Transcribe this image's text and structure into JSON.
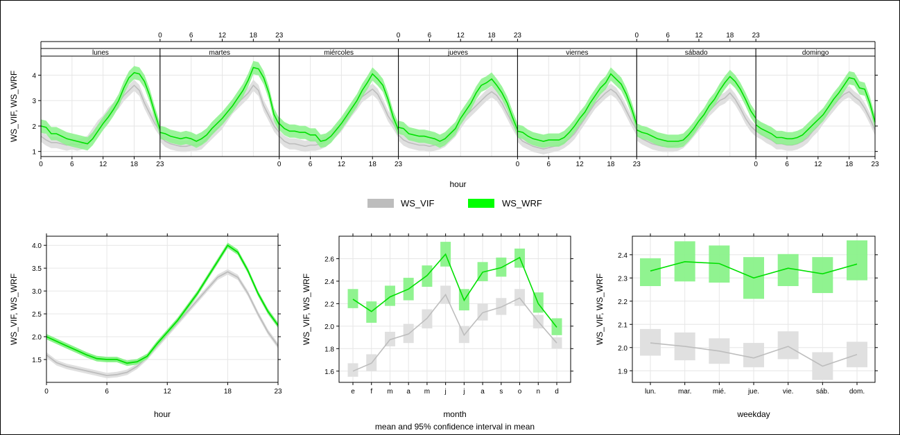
{
  "colors": {
    "ws_vif_line": "#bdbdbd",
    "ws_vif_band": "#e0e0e0",
    "ws_wrf_line": "#00e000",
    "ws_wrf_band": "#8af28a",
    "grid": "#e6e6e6",
    "strip_bg": "#ffffff"
  },
  "legend": {
    "items": [
      {
        "label": "WS_VIF",
        "color": "#bdbdbd"
      },
      {
        "label": "WS_WRF",
        "color": "#00ff00"
      }
    ]
  },
  "chart_data": [
    {
      "id": "hour_by_weekday",
      "type": "line",
      "panels": [
        "lunes",
        "martes",
        "miércoles",
        "jueves",
        "viernes",
        "sábado",
        "domingo"
      ],
      "xlabel": "hour",
      "ylabel": "WS_VIF, WS_WRF",
      "xlim": [
        0,
        23
      ],
      "ylim": [
        0.8,
        4.75
      ],
      "xticks": [
        0,
        6,
        12,
        18,
        23
      ],
      "yticks": [
        1,
        2,
        3,
        4
      ],
      "series": [
        {
          "name": "WS_VIF",
          "values": [
            [
              1.6,
              1.45,
              1.35,
              1.35,
              1.3,
              1.25,
              1.3,
              1.25,
              1.3,
              1.4,
              1.7,
              2.0,
              2.2,
              2.5,
              2.7,
              2.9,
              3.2,
              3.4,
              3.6,
              3.4,
              2.9,
              2.5,
              2.1,
              1.8
            ],
            [
              1.6,
              1.4,
              1.3,
              1.25,
              1.2,
              1.2,
              1.25,
              1.25,
              1.3,
              1.5,
              1.7,
              1.9,
              2.1,
              2.4,
              2.7,
              2.9,
              3.1,
              3.3,
              3.6,
              3.4,
              2.8,
              2.4,
              2.0,
              1.75
            ],
            [
              1.6,
              1.4,
              1.3,
              1.3,
              1.25,
              1.2,
              1.25,
              1.25,
              1.3,
              1.4,
              1.6,
              1.8,
              2.0,
              2.3,
              2.6,
              2.85,
              3.15,
              3.3,
              3.45,
              3.25,
              2.85,
              2.4,
              2.1,
              1.75
            ],
            [
              1.65,
              1.45,
              1.35,
              1.3,
              1.25,
              1.25,
              1.2,
              1.25,
              1.3,
              1.4,
              1.6,
              1.8,
              2.1,
              2.4,
              2.6,
              2.8,
              3.0,
              3.2,
              3.35,
              3.2,
              2.9,
              2.5,
              2.1,
              1.75
            ],
            [
              1.6,
              1.4,
              1.3,
              1.2,
              1.15,
              1.1,
              1.15,
              1.2,
              1.25,
              1.35,
              1.5,
              1.7,
              2.0,
              2.3,
              2.6,
              2.9,
              3.1,
              3.3,
              3.45,
              3.3,
              3.0,
              2.6,
              2.2,
              1.85
            ],
            [
              1.65,
              1.5,
              1.4,
              1.3,
              1.25,
              1.2,
              1.2,
              1.2,
              1.25,
              1.35,
              1.55,
              1.8,
              2.05,
              2.3,
              2.6,
              2.8,
              3.0,
              3.1,
              3.3,
              3.05,
              2.7,
              2.3,
              2.0,
              1.8
            ],
            [
              1.8,
              1.7,
              1.55,
              1.45,
              1.3,
              1.3,
              1.25,
              1.25,
              1.3,
              1.4,
              1.55,
              1.8,
              2.0,
              2.3,
              2.55,
              2.8,
              3.05,
              3.25,
              3.35,
              3.15,
              3.0,
              2.7,
              2.3,
              1.85
            ]
          ]
        },
        {
          "name": "WS_WRF",
          "values": [
            [
              2.0,
              1.95,
              1.7,
              1.7,
              1.6,
              1.5,
              1.45,
              1.4,
              1.35,
              1.3,
              1.5,
              1.8,
              2.1,
              2.35,
              2.65,
              3.0,
              3.5,
              3.9,
              4.1,
              4.05,
              3.75,
              3.2,
              2.5,
              1.85
            ],
            [
              1.75,
              1.7,
              1.6,
              1.55,
              1.5,
              1.55,
              1.5,
              1.4,
              1.5,
              1.65,
              1.9,
              2.1,
              2.3,
              2.55,
              2.8,
              3.1,
              3.4,
              3.8,
              4.3,
              4.25,
              3.9,
              3.3,
              2.45,
              2.05
            ],
            [
              2.1,
              1.9,
              1.8,
              1.8,
              1.75,
              1.75,
              1.65,
              1.65,
              1.4,
              1.45,
              1.6,
              1.85,
              2.1,
              2.4,
              2.7,
              3.0,
              3.4,
              3.7,
              4.05,
              3.85,
              3.6,
              3.05,
              2.35,
              1.85
            ],
            [
              1.95,
              1.9,
              1.7,
              1.65,
              1.6,
              1.6,
              1.55,
              1.5,
              1.4,
              1.5,
              1.7,
              1.9,
              2.3,
              2.6,
              2.9,
              3.3,
              3.6,
              3.7,
              3.85,
              3.6,
              3.3,
              2.9,
              2.35,
              1.85
            ],
            [
              1.8,
              1.75,
              1.6,
              1.5,
              1.45,
              1.4,
              1.45,
              1.45,
              1.45,
              1.55,
              1.75,
              2.0,
              2.3,
              2.55,
              2.9,
              3.2,
              3.5,
              3.7,
              4.05,
              3.85,
              3.65,
              3.25,
              2.7,
              2.05
            ],
            [
              1.85,
              1.75,
              1.7,
              1.6,
              1.5,
              1.45,
              1.4,
              1.4,
              1.4,
              1.45,
              1.65,
              1.9,
              2.2,
              2.45,
              2.8,
              3.05,
              3.4,
              3.7,
              3.95,
              3.75,
              3.45,
              3.05,
              2.6,
              2.3
            ],
            [
              2.05,
              1.9,
              1.8,
              1.7,
              1.55,
              1.55,
              1.5,
              1.5,
              1.55,
              1.65,
              1.85,
              2.05,
              2.25,
              2.45,
              2.75,
              3.05,
              3.3,
              3.6,
              3.9,
              3.85,
              3.5,
              3.45,
              2.9,
              2.15
            ]
          ]
        }
      ]
    },
    {
      "id": "hour",
      "type": "line",
      "xlabel": "hour",
      "ylabel": "WS_VIF, WS_WRF",
      "xlim": [
        0,
        23
      ],
      "ylim": [
        1.0,
        4.2
      ],
      "xticks": [
        0,
        6,
        12,
        18,
        23
      ],
      "yticks": [
        1.5,
        2.0,
        2.5,
        3.0,
        3.5,
        4.0
      ],
      "ytick_labels": [
        "1.5",
        "2.0",
        "2.5",
        "3.0",
        "3.5",
        "4.0"
      ],
      "x": [
        0,
        1,
        2,
        3,
        4,
        5,
        6,
        7,
        8,
        9,
        10,
        11,
        12,
        13,
        14,
        15,
        16,
        17,
        18,
        19,
        20,
        21,
        22,
        23
      ],
      "series": [
        {
          "name": "WS_VIF",
          "values": [
            1.6,
            1.43,
            1.35,
            1.3,
            1.25,
            1.2,
            1.15,
            1.17,
            1.22,
            1.35,
            1.55,
            1.8,
            2.05,
            2.3,
            2.55,
            2.8,
            3.05,
            3.3,
            3.42,
            3.3,
            2.95,
            2.5,
            2.1,
            1.8
          ]
        },
        {
          "name": "WS_WRF",
          "values": [
            2.0,
            1.9,
            1.8,
            1.7,
            1.6,
            1.52,
            1.5,
            1.5,
            1.42,
            1.45,
            1.57,
            1.85,
            2.1,
            2.35,
            2.65,
            2.95,
            3.3,
            3.65,
            4.0,
            3.85,
            3.45,
            2.95,
            2.55,
            2.25
          ]
        }
      ]
    },
    {
      "id": "month",
      "type": "line",
      "xlabel": "month",
      "subtitle": "mean and 95% confidence interval in mean",
      "ylabel": "WS_VIF, WS_WRF",
      "categories": [
        "e",
        "f",
        "m",
        "a",
        "m",
        "j",
        "j",
        "a",
        "s",
        "o",
        "n",
        "d"
      ],
      "ylim": [
        1.5,
        2.8
      ],
      "yticks": [
        1.6,
        1.8,
        2.0,
        2.2,
        2.4,
        2.6
      ],
      "ytick_labels": [
        "1.6",
        "1.8",
        "2.0",
        "2.2",
        "2.4",
        "2.6"
      ],
      "series": [
        {
          "name": "WS_VIF",
          "values": [
            1.6,
            1.67,
            1.88,
            1.93,
            2.07,
            2.28,
            1.92,
            2.12,
            2.17,
            2.25,
            2.04,
            1.85
          ],
          "ci_low": [
            1.55,
            1.6,
            1.82,
            1.85,
            1.98,
            2.2,
            1.85,
            2.05,
            2.1,
            2.18,
            1.98,
            1.8
          ],
          "ci_high": [
            1.67,
            1.75,
            1.95,
            2.02,
            2.15,
            2.36,
            2.0,
            2.2,
            2.25,
            2.33,
            2.1,
            1.9
          ]
        },
        {
          "name": "WS_WRF",
          "values": [
            2.24,
            2.13,
            2.26,
            2.33,
            2.45,
            2.64,
            2.23,
            2.48,
            2.52,
            2.61,
            2.2,
            1.99
          ],
          "ci_low": [
            2.16,
            2.03,
            2.18,
            2.23,
            2.35,
            2.53,
            2.14,
            2.4,
            2.44,
            2.52,
            2.12,
            1.92
          ],
          "ci_high": [
            2.33,
            2.22,
            2.36,
            2.43,
            2.54,
            2.75,
            2.33,
            2.57,
            2.61,
            2.69,
            2.3,
            2.07
          ]
        }
      ]
    },
    {
      "id": "weekday",
      "type": "line",
      "xlabel": "weekday",
      "ylabel": "WS_VIF, WS_WRF",
      "categories": [
        "lun.",
        "mar.",
        "mié.",
        "jue.",
        "vie.",
        "sáb.",
        "dom."
      ],
      "ylim": [
        1.85,
        2.48
      ],
      "yticks": [
        1.9,
        2.0,
        2.1,
        2.2,
        2.3,
        2.4
      ],
      "ytick_labels": [
        "1.9",
        "2.0",
        "2.1",
        "2.2",
        "2.3",
        "2.4"
      ],
      "series": [
        {
          "name": "WS_VIF",
          "values": [
            2.02,
            2.005,
            1.985,
            1.955,
            2.005,
            1.92,
            1.97
          ],
          "ci_low": [
            1.965,
            1.945,
            1.93,
            1.915,
            1.95,
            1.86,
            1.915
          ],
          "ci_high": [
            2.08,
            2.065,
            2.04,
            2.02,
            2.07,
            1.98,
            2.025
          ]
        },
        {
          "name": "WS_WRF",
          "values": [
            2.33,
            2.37,
            2.362,
            2.3,
            2.342,
            2.318,
            2.36
          ],
          "ci_low": [
            2.265,
            2.285,
            2.28,
            2.21,
            2.265,
            2.235,
            2.29
          ],
          "ci_high": [
            2.385,
            2.458,
            2.44,
            2.39,
            2.403,
            2.39,
            2.462
          ]
        }
      ]
    }
  ]
}
